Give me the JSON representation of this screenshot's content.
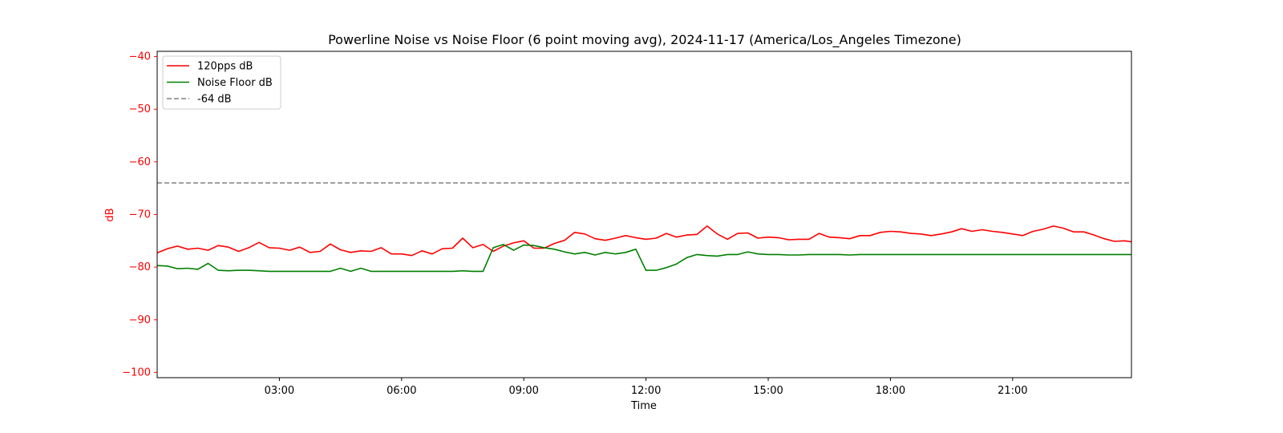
{
  "chart_data": {
    "type": "line",
    "title": "Powerline Noise vs Noise Floor (6 point moving avg), 2024-11-17 (America/Los_Angeles Timezone)",
    "xlabel": "Time",
    "ylabel": "dB",
    "xlim": [
      "00:00",
      "23:55"
    ],
    "ylim": [
      -101,
      -39
    ],
    "x_ticks": [
      "03:00",
      "06:00",
      "09:00",
      "12:00",
      "15:00",
      "18:00",
      "21:00"
    ],
    "y_ticks": [
      -40,
      -50,
      -60,
      -70,
      -80,
      -90,
      -100
    ],
    "grid": false,
    "legend_position": "upper left",
    "y_axis_color": "#ff0000",
    "series": [
      {
        "name": "120pps dB",
        "color": "#ff0000",
        "style": "solid",
        "points": [
          [
            "00:00",
            -77.3
          ],
          [
            "00:15",
            -76.5
          ],
          [
            "00:30",
            -76.0
          ],
          [
            "00:45",
            -76.6
          ],
          [
            "01:00",
            -76.4
          ],
          [
            "01:15",
            -76.8
          ],
          [
            "01:30",
            -75.9
          ],
          [
            "01:45",
            -76.2
          ],
          [
            "02:00",
            -77.0
          ],
          [
            "02:15",
            -76.3
          ],
          [
            "02:30",
            -75.3
          ],
          [
            "02:45",
            -76.3
          ],
          [
            "03:00",
            -76.4
          ],
          [
            "03:15",
            -76.8
          ],
          [
            "03:30",
            -76.2
          ],
          [
            "03:45",
            -77.2
          ],
          [
            "04:00",
            -77.0
          ],
          [
            "04:15",
            -75.6
          ],
          [
            "04:30",
            -76.7
          ],
          [
            "04:45",
            -77.2
          ],
          [
            "05:00",
            -76.9
          ],
          [
            "05:15",
            -77.0
          ],
          [
            "05:30",
            -76.3
          ],
          [
            "05:45",
            -77.5
          ],
          [
            "06:00",
            -77.5
          ],
          [
            "06:15",
            -77.8
          ],
          [
            "06:30",
            -76.9
          ],
          [
            "06:45",
            -77.5
          ],
          [
            "07:00",
            -76.5
          ],
          [
            "07:15",
            -76.4
          ],
          [
            "07:30",
            -74.5
          ],
          [
            "07:45",
            -76.3
          ],
          [
            "08:00",
            -75.7
          ],
          [
            "08:15",
            -77.0
          ],
          [
            "08:30",
            -76.0
          ],
          [
            "08:45",
            -75.4
          ],
          [
            "09:00",
            -75.0
          ],
          [
            "09:15",
            -76.4
          ],
          [
            "09:30",
            -76.4
          ],
          [
            "09:45",
            -75.5
          ],
          [
            "10:00",
            -74.9
          ],
          [
            "10:15",
            -73.4
          ],
          [
            "10:30",
            -73.7
          ],
          [
            "10:45",
            -74.6
          ],
          [
            "11:00",
            -74.9
          ],
          [
            "11:15",
            -74.5
          ],
          [
            "11:30",
            -74.0
          ],
          [
            "11:45",
            -74.4
          ],
          [
            "12:00",
            -74.7
          ],
          [
            "12:15",
            -74.5
          ],
          [
            "12:30",
            -73.6
          ],
          [
            "12:45",
            -74.3
          ],
          [
            "13:00",
            -73.9
          ],
          [
            "13:15",
            -73.8
          ],
          [
            "13:30",
            -72.2
          ],
          [
            "13:45",
            -73.7
          ],
          [
            "14:00",
            -74.7
          ],
          [
            "14:15",
            -73.6
          ],
          [
            "14:30",
            -73.5
          ],
          [
            "14:45",
            -74.5
          ],
          [
            "15:00",
            -74.3
          ],
          [
            "15:15",
            -74.4
          ],
          [
            "15:30",
            -74.8
          ],
          [
            "15:45",
            -74.7
          ],
          [
            "16:00",
            -74.7
          ],
          [
            "16:15",
            -73.6
          ],
          [
            "16:30",
            -74.3
          ],
          [
            "16:45",
            -74.4
          ],
          [
            "17:00",
            -74.6
          ],
          [
            "17:15",
            -74.0
          ],
          [
            "17:30",
            -74.0
          ],
          [
            "17:45",
            -73.4
          ],
          [
            "18:00",
            -73.2
          ],
          [
            "18:15",
            -73.3
          ],
          [
            "18:30",
            -73.6
          ],
          [
            "18:45",
            -73.7
          ],
          [
            "19:00",
            -74.0
          ],
          [
            "19:15",
            -73.7
          ],
          [
            "19:30",
            -73.3
          ],
          [
            "19:45",
            -72.7
          ],
          [
            "20:00",
            -73.2
          ],
          [
            "20:15",
            -72.9
          ],
          [
            "20:30",
            -73.2
          ],
          [
            "20:45",
            -73.4
          ],
          [
            "21:00",
            -73.7
          ],
          [
            "21:15",
            -74.0
          ],
          [
            "21:30",
            -73.2
          ],
          [
            "21:45",
            -72.8
          ],
          [
            "22:00",
            -72.2
          ],
          [
            "22:15",
            -72.6
          ],
          [
            "22:30",
            -73.3
          ],
          [
            "22:45",
            -73.3
          ],
          [
            "23:00",
            -73.9
          ],
          [
            "23:15",
            -74.6
          ],
          [
            "23:30",
            -75.1
          ],
          [
            "23:45",
            -75.0
          ],
          [
            "23:55",
            -75.2
          ]
        ]
      },
      {
        "name": "Noise Floor dB",
        "color": "#008000",
        "style": "solid",
        "points": [
          [
            "00:00",
            -79.7
          ],
          [
            "00:15",
            -79.8
          ],
          [
            "00:30",
            -80.3
          ],
          [
            "00:45",
            -80.2
          ],
          [
            "01:00",
            -80.4
          ],
          [
            "01:15",
            -79.3
          ],
          [
            "01:30",
            -80.6
          ],
          [
            "01:45",
            -80.7
          ],
          [
            "02:00",
            -80.6
          ],
          [
            "02:15",
            -80.6
          ],
          [
            "02:30",
            -80.7
          ],
          [
            "02:45",
            -80.8
          ],
          [
            "03:00",
            -80.8
          ],
          [
            "03:15",
            -80.8
          ],
          [
            "03:30",
            -80.8
          ],
          [
            "03:45",
            -80.8
          ],
          [
            "04:00",
            -80.8
          ],
          [
            "04:15",
            -80.8
          ],
          [
            "04:30",
            -80.2
          ],
          [
            "04:45",
            -80.8
          ],
          [
            "05:00",
            -80.2
          ],
          [
            "05:15",
            -80.8
          ],
          [
            "05:30",
            -80.8
          ],
          [
            "05:45",
            -80.8
          ],
          [
            "06:00",
            -80.8
          ],
          [
            "06:15",
            -80.8
          ],
          [
            "06:30",
            -80.8
          ],
          [
            "06:45",
            -80.8
          ],
          [
            "07:00",
            -80.8
          ],
          [
            "07:15",
            -80.8
          ],
          [
            "07:30",
            -80.7
          ],
          [
            "07:45",
            -80.8
          ],
          [
            "08:00",
            -80.8
          ],
          [
            "08:15",
            -76.3
          ],
          [
            "08:30",
            -75.7
          ],
          [
            "08:45",
            -76.8
          ],
          [
            "09:00",
            -75.8
          ],
          [
            "09:15",
            -75.9
          ],
          [
            "09:30",
            -76.3
          ],
          [
            "09:45",
            -76.6
          ],
          [
            "10:00",
            -77.1
          ],
          [
            "10:15",
            -77.5
          ],
          [
            "10:30",
            -77.2
          ],
          [
            "10:45",
            -77.7
          ],
          [
            "11:00",
            -77.2
          ],
          [
            "11:15",
            -77.5
          ],
          [
            "11:30",
            -77.2
          ],
          [
            "11:45",
            -76.6
          ],
          [
            "12:00",
            -80.6
          ],
          [
            "12:15",
            -80.6
          ],
          [
            "12:30",
            -80.1
          ],
          [
            "12:45",
            -79.4
          ],
          [
            "13:00",
            -78.2
          ],
          [
            "13:15",
            -77.6
          ],
          [
            "13:30",
            -77.8
          ],
          [
            "13:45",
            -77.9
          ],
          [
            "14:00",
            -77.6
          ],
          [
            "14:15",
            -77.6
          ],
          [
            "14:30",
            -77.1
          ],
          [
            "14:45",
            -77.5
          ],
          [
            "15:00",
            -77.6
          ],
          [
            "15:15",
            -77.6
          ],
          [
            "15:30",
            -77.7
          ],
          [
            "15:45",
            -77.7
          ],
          [
            "16:00",
            -77.6
          ],
          [
            "16:15",
            -77.6
          ],
          [
            "16:30",
            -77.6
          ],
          [
            "16:45",
            -77.6
          ],
          [
            "17:00",
            -77.7
          ],
          [
            "17:15",
            -77.6
          ],
          [
            "17:30",
            -77.6
          ],
          [
            "17:45",
            -77.6
          ],
          [
            "18:00",
            -77.6
          ],
          [
            "18:15",
            -77.6
          ],
          [
            "18:30",
            -77.6
          ],
          [
            "18:45",
            -77.6
          ],
          [
            "19:00",
            -77.6
          ],
          [
            "19:15",
            -77.6
          ],
          [
            "19:30",
            -77.6
          ],
          [
            "19:45",
            -77.6
          ],
          [
            "20:00",
            -77.6
          ],
          [
            "20:15",
            -77.6
          ],
          [
            "20:30",
            -77.6
          ],
          [
            "20:45",
            -77.6
          ],
          [
            "21:00",
            -77.6
          ],
          [
            "21:15",
            -77.6
          ],
          [
            "21:30",
            -77.6
          ],
          [
            "21:45",
            -77.6
          ],
          [
            "22:00",
            -77.6
          ],
          [
            "22:15",
            -77.6
          ],
          [
            "22:30",
            -77.6
          ],
          [
            "22:45",
            -77.6
          ],
          [
            "23:00",
            -77.6
          ],
          [
            "23:15",
            -77.6
          ],
          [
            "23:30",
            -77.6
          ],
          [
            "23:45",
            -77.6
          ],
          [
            "23:55",
            -77.6
          ]
        ]
      },
      {
        "name": "-64 dB",
        "color": "#808080",
        "style": "dashed",
        "constant": -64
      }
    ]
  }
}
